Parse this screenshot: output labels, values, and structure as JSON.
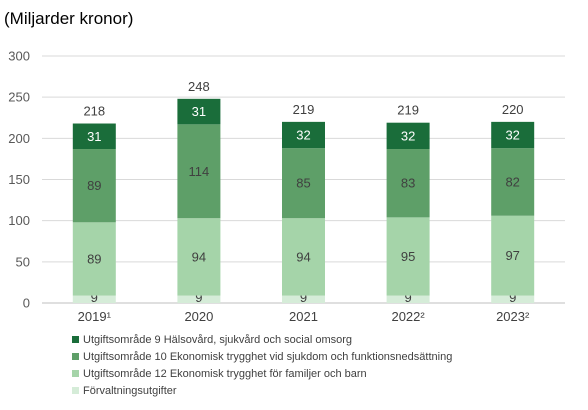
{
  "unit_label": "(Miljarder kronor)",
  "chart_data": {
    "type": "bar",
    "stacked": true,
    "categories": [
      "2019¹",
      "2020",
      "2021",
      "2022²",
      "2023²"
    ],
    "series": [
      {
        "name": "Förvaltningsutgifter",
        "values": [
          9,
          9,
          9,
          9,
          9
        ],
        "color": "#d5ecd8",
        "label_color": "#404040"
      },
      {
        "name": "Utgiftsområde 12 Ekonomisk trygghet för familjer och barn",
        "values": [
          89,
          94,
          94,
          95,
          97
        ],
        "color": "#a5d4a9",
        "label_color": "#404040"
      },
      {
        "name": "Utgiftsområde 10 Ekonomisk trygghet vid sjukdom och funktionsnedsättning",
        "values": [
          89,
          114,
          85,
          83,
          82
        ],
        "color": "#5e9f68",
        "label_color": "#404040"
      },
      {
        "name": "Utgiftsområde 9 Hälsovård, sjukvård och social omsorg",
        "values": [
          31,
          31,
          32,
          32,
          32
        ],
        "color": "#1a6d3a",
        "label_color": "#ffffff"
      }
    ],
    "totals": [
      218,
      248,
      219,
      219,
      220
    ],
    "ylim": [
      0,
      300
    ],
    "yticks": [
      0,
      50,
      100,
      150,
      200,
      250,
      300
    ],
    "grid": true,
    "legend_position": "bottom"
  },
  "legend_order": [
    3,
    2,
    1,
    0
  ]
}
